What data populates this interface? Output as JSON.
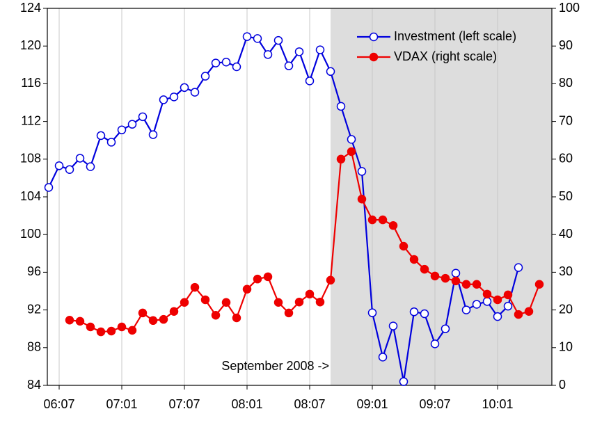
{
  "chart_data": {
    "type": "line",
    "categories": [
      null,
      "06:07",
      null,
      null,
      null,
      null,
      null,
      "07:01",
      null,
      null,
      null,
      null,
      null,
      "07:07",
      null,
      null,
      null,
      null,
      null,
      "08:01",
      null,
      null,
      null,
      null,
      null,
      "08:07",
      null,
      null,
      null,
      null,
      null,
      "09:01",
      null,
      null,
      null,
      null,
      null,
      "09:07",
      null,
      null,
      null,
      null,
      null,
      "10:01",
      null,
      null,
      null,
      null
    ],
    "series": [
      {
        "name": "Investment (left scale)",
        "color": "#0000dd",
        "marker": "open",
        "axis": "y",
        "values": [
          105.0,
          107.3,
          106.9,
          108.1,
          107.2,
          110.5,
          109.8,
          111.1,
          111.7,
          112.5,
          110.6,
          114.3,
          114.6,
          115.6,
          115.1,
          116.8,
          118.2,
          118.3,
          117.8,
          121.0,
          120.8,
          119.1,
          120.6,
          117.9,
          119.4,
          116.3,
          119.6,
          117.3,
          113.6,
          110.1,
          106.7,
          91.7,
          87.0,
          90.3,
          84.4,
          91.8,
          91.6,
          88.4,
          90.0,
          95.9,
          92.0,
          92.6,
          92.9,
          91.3,
          92.4,
          96.5,
          null,
          null
        ]
      },
      {
        "name": "VDAX (right scale)",
        "color": "#ee0000",
        "marker": "filled",
        "axis": "y2",
        "values": [
          null,
          null,
          17.3,
          17.0,
          15.5,
          14.2,
          14.4,
          15.5,
          14.6,
          19.2,
          17.2,
          17.5,
          19.6,
          22.0,
          26.0,
          22.7,
          18.6,
          22.0,
          17.9,
          25.5,
          28.2,
          28.8,
          22.0,
          19.2,
          22.1,
          24.2,
          22.1,
          27.9,
          60.0,
          62.0,
          49.4,
          43.9,
          43.9,
          42.4,
          36.9,
          33.4,
          30.8,
          29.0,
          28.4,
          27.7,
          26.8,
          26.8,
          24.2,
          22.7,
          24.0,
          18.8,
          19.6,
          26.8
        ]
      }
    ],
    "ylim": [
      84,
      124
    ],
    "yticks": [
      84,
      88,
      92,
      96,
      100,
      104,
      108,
      112,
      116,
      120,
      124
    ],
    "y2lim": [
      0,
      100
    ],
    "y2ticks": [
      0,
      10,
      20,
      30,
      40,
      50,
      60,
      70,
      80,
      90,
      100
    ],
    "grid": true,
    "legend": "top-right",
    "annotation": {
      "text": "September 2008 ->",
      "at": 27,
      "shade_color": "#dddddd"
    }
  }
}
